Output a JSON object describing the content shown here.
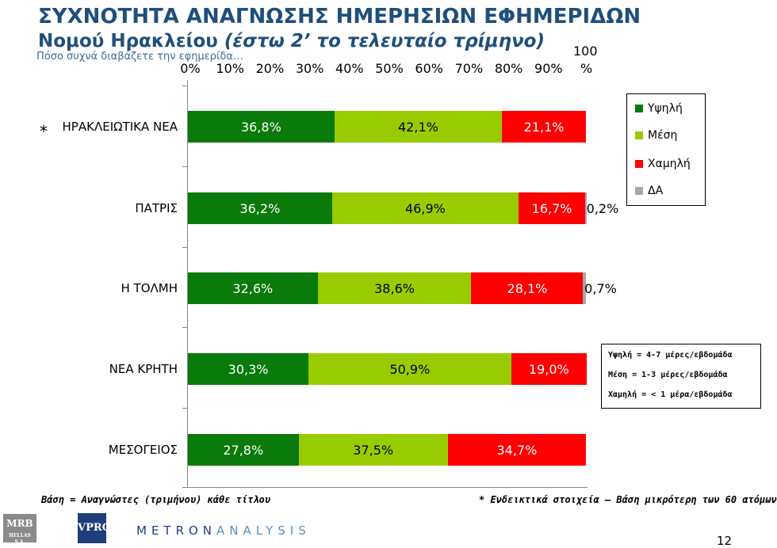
{
  "header": {
    "title_line1": "ΣΥΧΝΟΤΗΤΑ ΑΝΑΓΝΩΣΗΣ ΗΜΕΡΗΣΙΩΝ ΕΦΗΜΕΡΙΔΩΝ",
    "title_line2_a": "Νομού Ηρακλείου ",
    "title_line2_b": "(έστω 2’ το τελευταίο τρίμηνο)",
    "question": "Πόσο συχνά διαβάζετε την εφημερίδα…"
  },
  "chart_data": {
    "type": "bar",
    "orientation": "horizontal-stacked-100",
    "x_ticks": [
      "0%",
      "10%",
      "20%",
      "30%",
      "40%",
      "50%",
      "60%",
      "70%",
      "80%",
      "90%"
    ],
    "x_tick_last_a": "100",
    "x_tick_last_b": "%",
    "xlim": [
      0,
      100
    ],
    "categories": [
      "ΗΡΑΚΛΕΙΩΤΙΚΑ ΝΕΑ",
      "ΠΑΤΡΙΣ",
      "Η ΤΟΛΜΗ",
      "ΝΕΑ ΚΡΗΤΗ",
      "ΜΕΣΟΓΕΙΟΣ"
    ],
    "category_marker": "*",
    "series": [
      {
        "name": "Υψηλή",
        "color": "#0a7a0a",
        "label_color": "#ffffff",
        "values": [
          36.8,
          36.2,
          32.6,
          30.3,
          27.8
        ],
        "labels": [
          "36,8%",
          "36,2%",
          "32,6%",
          "30,3%",
          "27,8%"
        ]
      },
      {
        "name": "Μέση",
        "color": "#99cc00",
        "label_color": "#000000",
        "values": [
          42.1,
          46.9,
          38.6,
          50.9,
          37.5
        ],
        "labels": [
          "42,1%",
          "46,9%",
          "38,6%",
          "50,9%",
          "37,5%"
        ]
      },
      {
        "name": "Χαμηλή",
        "color": "#ff0000",
        "label_color": "#ffffff",
        "values": [
          21.1,
          16.7,
          28.1,
          19.0,
          34.7
        ],
        "labels": [
          "21,1%",
          "16,7%",
          "28,1%",
          "19,0%",
          "34,7%"
        ]
      },
      {
        "name": "ΔΑ",
        "color": "#a6a6a6",
        "label_color": "#000000",
        "values": [
          0,
          0.2,
          0.7,
          0,
          0
        ],
        "labels": [
          "",
          "0,2%",
          "0,7%",
          "",
          ""
        ]
      }
    ],
    "legend": {
      "placement": "top-right"
    },
    "grid": false
  },
  "definitions": [
    "Υψηλή = 4-7 μέρες/εβδομάδα",
    "Μέση = 1-3 μέρες/εβδομάδα",
    "Χαμηλή = < 1 μέρα/εβδομάδα"
  ],
  "footer": {
    "base_note": "Βάση = Αναγνώστες (τριμήνου) κάθε τίτλου",
    "indicative_note": "* Ενδεικτικά στοιχεία – Βάση μικρότερη των 60 ατόμων",
    "logo_mrb": "MRB",
    "logo_mrb_sub": "HELLAS S.A.",
    "logo_vprc": "VPRC",
    "logo_metron_a": "METRON",
    "logo_metron_b": "ANALYSIS",
    "page_number": "12"
  }
}
